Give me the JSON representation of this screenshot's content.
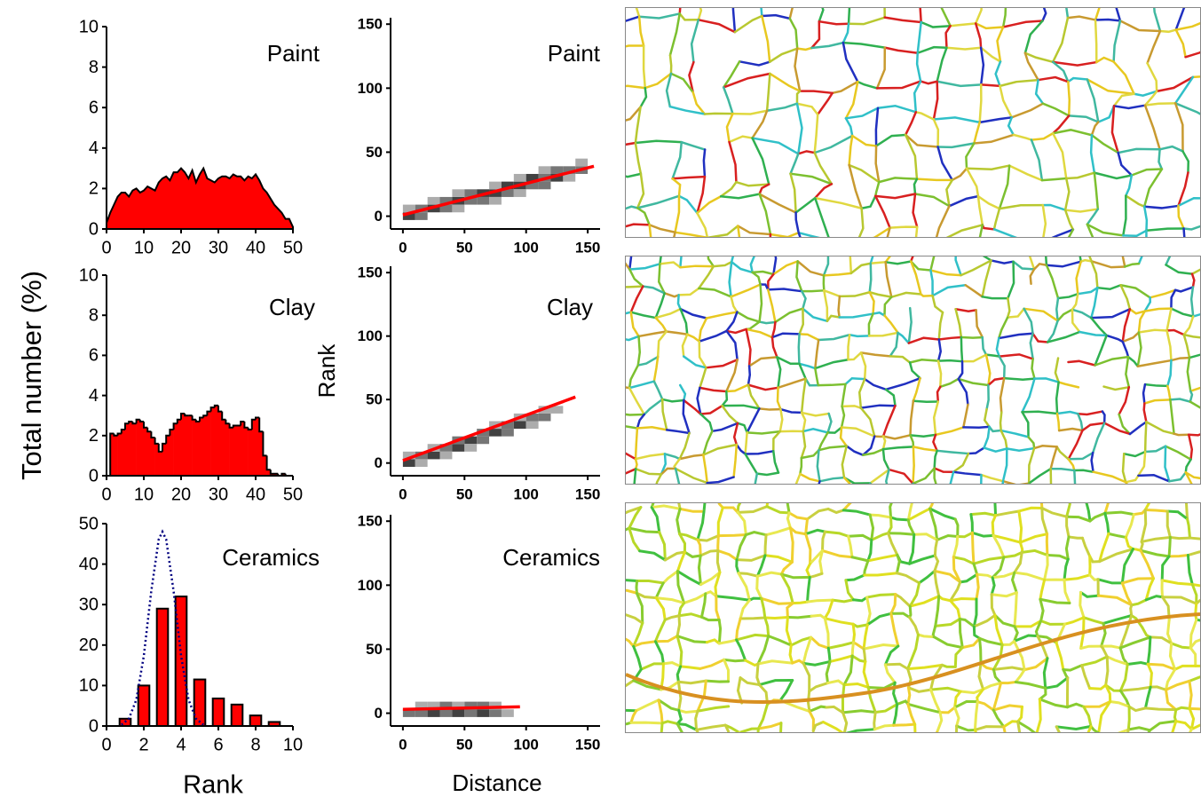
{
  "chart_data": [
    {
      "type": "area",
      "title": "Paint",
      "color": "#ff0000",
      "x": [
        0,
        1,
        2,
        3,
        4,
        5,
        6,
        7,
        8,
        9,
        10,
        11,
        12,
        13,
        14,
        15,
        16,
        17,
        18,
        19,
        20,
        21,
        22,
        23,
        24,
        25,
        26,
        27,
        28,
        29,
        30,
        31,
        32,
        33,
        34,
        35,
        36,
        37,
        38,
        39,
        40,
        41,
        42,
        43,
        44,
        45,
        46,
        47,
        48,
        49,
        50
      ],
      "values": [
        0.3,
        0.8,
        1.2,
        1.6,
        1.8,
        1.8,
        1.6,
        1.9,
        2.0,
        1.8,
        1.9,
        2.1,
        2.0,
        1.9,
        2.3,
        2.5,
        2.6,
        2.4,
        2.8,
        2.8,
        3.0,
        2.8,
        2.5,
        2.9,
        2.3,
        2.7,
        3.0,
        2.5,
        2.4,
        2.3,
        2.5,
        2.6,
        2.6,
        2.5,
        2.7,
        2.6,
        2.6,
        2.4,
        2.6,
        2.5,
        2.7,
        2.4,
        2.0,
        1.8,
        1.5,
        1.2,
        1.0,
        0.8,
        0.5,
        0.5,
        0.1
      ],
      "xlim": [
        0,
        50
      ],
      "ylim": [
        0,
        10
      ],
      "xticks": [
        0,
        10,
        20,
        30,
        40,
        50
      ],
      "yticks": [
        0,
        2,
        4,
        6,
        8,
        10
      ]
    },
    {
      "type": "histogram",
      "title": "Clay",
      "ylabel": "Total number (%)",
      "color": "#ff0000",
      "bins": [
        0,
        1,
        2,
        3,
        4,
        5,
        6,
        7,
        8,
        9,
        10,
        11,
        12,
        13,
        14,
        15,
        16,
        17,
        18,
        19,
        20,
        21,
        22,
        23,
        24,
        25,
        26,
        27,
        28,
        29,
        30,
        31,
        32,
        33,
        34,
        35,
        36,
        37,
        38,
        39,
        40,
        41,
        42,
        43,
        44,
        45,
        46,
        47,
        48,
        49,
        50
      ],
      "values": [
        0,
        2.1,
        2.0,
        2.1,
        2.3,
        2.6,
        2.7,
        2.6,
        2.8,
        2.7,
        2.4,
        2.2,
        1.9,
        1.6,
        1.2,
        1.6,
        2.0,
        2.3,
        2.6,
        2.8,
        3.1,
        3.0,
        3.0,
        2.8,
        2.7,
        2.9,
        3.0,
        3.2,
        3.4,
        3.5,
        3.2,
        2.8,
        2.6,
        2.4,
        2.5,
        2.5,
        2.7,
        2.4,
        2.3,
        2.8,
        2.9,
        2.2,
        1.0,
        0.3,
        0.1,
        0.1,
        0,
        0.1,
        0,
        0
      ],
      "xlim": [
        0,
        50
      ],
      "ylim": [
        0,
        10
      ],
      "xticks": [
        0,
        10,
        20,
        30,
        40,
        50
      ],
      "yticks": [
        0,
        2,
        4,
        6,
        8,
        10
      ]
    },
    {
      "type": "bar",
      "title": "Ceramics",
      "xlabel": "Rank",
      "series": [
        {
          "type": "bar",
          "color": "#ff0000",
          "x": [
            1,
            2,
            3,
            4,
            5,
            6,
            7,
            8,
            9
          ],
          "values": [
            1.8,
            10,
            29,
            32,
            11.5,
            6.8,
            5.3,
            2.6,
            1
          ]
        },
        {
          "type": "line",
          "color": "#000080",
          "x": [
            0.8,
            1.2,
            1.6,
            2.0,
            2.4,
            2.8,
            3.0,
            3.2,
            3.6,
            4.0,
            4.4,
            4.8,
            5.2
          ],
          "values": [
            0.3,
            1.8,
            6.5,
            17.3,
            33.3,
            46.1,
            48,
            46.1,
            33.3,
            17.3,
            6.5,
            1.8,
            0.3
          ]
        }
      ],
      "xlim": [
        0,
        10
      ],
      "ylim": [
        0,
        50
      ],
      "xticks": [
        0,
        2,
        4,
        6,
        8,
        10
      ],
      "yticks": [
        0,
        10,
        20,
        30,
        40,
        50
      ]
    },
    {
      "type": "heatmap",
      "title": "Paint",
      "cells": {
        "x": [
          5,
          5,
          15,
          15,
          25,
          25,
          35,
          35,
          45,
          45,
          45,
          55,
          55,
          65,
          65,
          75,
          75,
          75,
          85,
          85,
          95,
          95,
          95,
          105,
          105,
          115,
          115,
          115,
          125,
          125,
          135,
          135,
          145,
          145
        ],
        "y": [
          0,
          6,
          0,
          6,
          6,
          12,
          6,
          12,
          12,
          6,
          18,
          12,
          18,
          12,
          18,
          18,
          24,
          12,
          18,
          24,
          24,
          18,
          30,
          24,
          30,
          30,
          24,
          36,
          30,
          36,
          36,
          30,
          36,
          42
        ],
        "values": [
          3,
          1,
          2,
          2,
          3,
          1,
          2,
          2,
          3,
          1,
          1,
          2,
          2,
          2,
          3,
          3,
          1,
          1,
          2,
          3,
          3,
          1,
          1,
          2,
          3,
          2,
          2,
          1,
          3,
          2,
          2,
          1,
          2,
          1
        ]
      },
      "fit": {
        "color": "#ff0000",
        "x": [
          0,
          155
        ],
        "values": [
          1,
          39
        ]
      },
      "xlim": [
        -10,
        160
      ],
      "ylim": [
        -10,
        155
      ],
      "xticks": [
        0,
        50,
        100,
        150
      ],
      "yticks": [
        0,
        50,
        100,
        150
      ]
    },
    {
      "type": "heatmap",
      "title": "Clay",
      "ylabel": "Rank",
      "cells": {
        "x": [
          5,
          5,
          15,
          15,
          25,
          25,
          35,
          35,
          45,
          45,
          55,
          55,
          65,
          65,
          75,
          75,
          85,
          85,
          95,
          95,
          105,
          105,
          115,
          115,
          125
        ],
        "y": [
          0,
          6,
          6,
          0,
          6,
          12,
          12,
          6,
          12,
          18,
          18,
          12,
          18,
          24,
          24,
          30,
          30,
          24,
          30,
          36,
          36,
          30,
          36,
          42,
          42
        ],
        "values": [
          3,
          1,
          2,
          1,
          3,
          1,
          2,
          1,
          3,
          2,
          3,
          1,
          2,
          2,
          3,
          1,
          2,
          2,
          3,
          1,
          2,
          1,
          2,
          1,
          1
        ]
      },
      "fit": {
        "color": "#ff0000",
        "x": [
          0,
          140
        ],
        "values": [
          2,
          52
        ]
      },
      "xlim": [
        -10,
        160
      ],
      "ylim": [
        -10,
        155
      ],
      "xticks": [
        0,
        50,
        100,
        150
      ],
      "yticks": [
        0,
        50,
        100,
        150
      ]
    },
    {
      "type": "heatmap",
      "title": "Ceramics",
      "xlabel": "Distance",
      "cells": {
        "x": [
          5,
          15,
          15,
          25,
          25,
          35,
          35,
          45,
          45,
          55,
          55,
          65,
          65,
          75,
          75,
          85
        ],
        "y": [
          0,
          0,
          6,
          0,
          6,
          0,
          6,
          0,
          6,
          0,
          6,
          0,
          6,
          0,
          6,
          0
        ],
        "values": [
          2,
          2,
          1,
          3,
          1,
          2,
          2,
          3,
          1,
          2,
          2,
          3,
          2,
          2,
          1,
          1
        ]
      },
      "fit": {
        "color": "#ff0000",
        "x": [
          0,
          95
        ],
        "values": [
          3,
          5
        ]
      },
      "xlim": [
        -10,
        160
      ],
      "ylim": [
        -10,
        155
      ],
      "xticks": [
        0,
        50,
        100,
        150
      ],
      "yticks": [
        0,
        50,
        100,
        150
      ]
    }
  ]
}
